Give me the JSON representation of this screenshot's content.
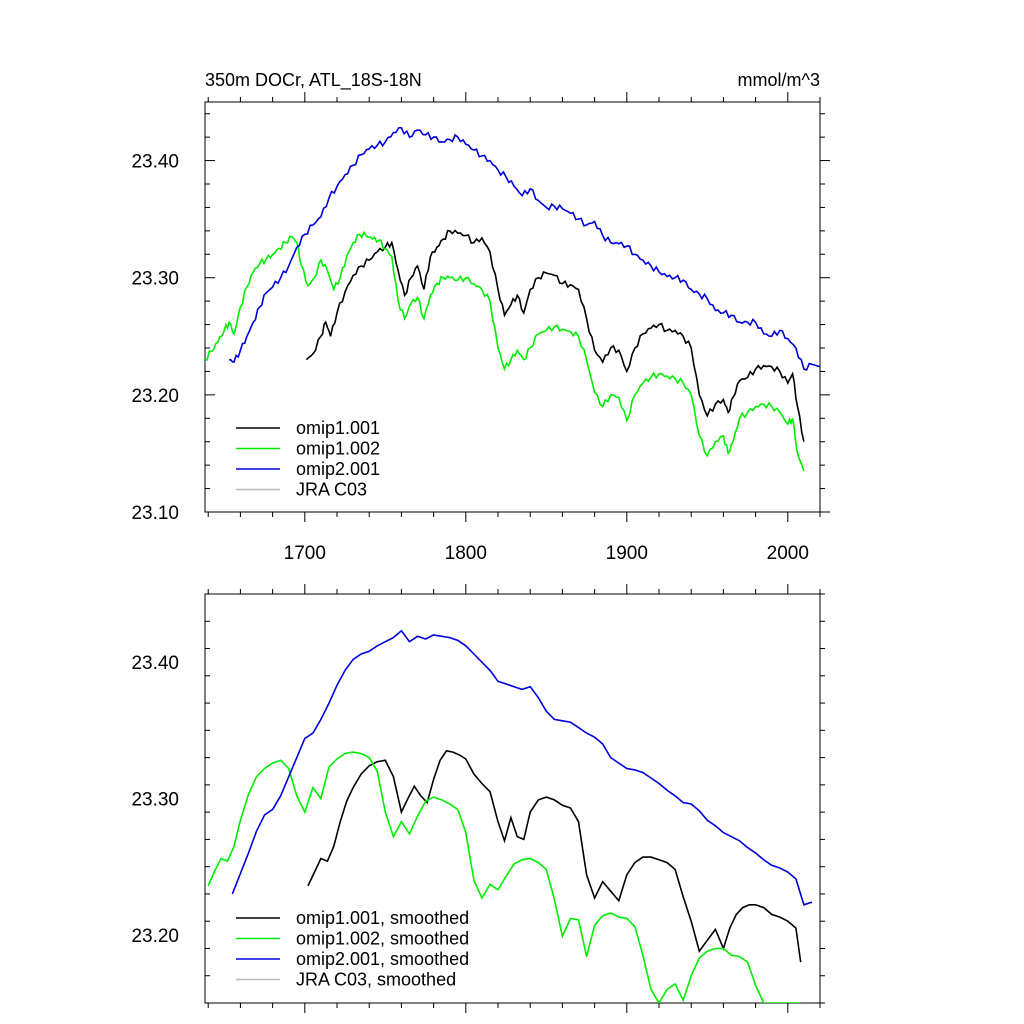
{
  "title_left": "350m DOCr, ATL_18S-18N",
  "title_right": "mmol/m^3",
  "colors": {
    "omip1_001": "#000000",
    "omip1_002": "#00ee00",
    "omip2_001": "#0000dd",
    "jra_c03": "#bbbbbb"
  },
  "chart_data": [
    {
      "type": "line",
      "panel": "top",
      "xlim": [
        1638,
        2020
      ],
      "ylim": [
        23.1,
        23.45
      ],
      "x_ticks": [
        1700,
        1800,
        1900,
        2000
      ],
      "x_tick_labels": [
        "1700",
        "1800",
        "1900",
        "2000"
      ],
      "y_ticks": [
        23.1,
        23.2,
        23.3,
        23.4
      ],
      "y_tick_labels": [
        "23.10",
        "23.20",
        "23.30",
        "23.40"
      ],
      "grid": false,
      "legend_position": "bottom-left",
      "series": [
        {
          "name": "omip1.001",
          "key": "omip1_001",
          "x": [
            1701,
            1705,
            1710,
            1713,
            1716,
            1720,
            1725,
            1730,
            1735,
            1740,
            1745,
            1750,
            1754,
            1758,
            1762,
            1766,
            1770,
            1774,
            1778,
            1782,
            1786,
            1790,
            1795,
            1800,
            1805,
            1810,
            1815,
            1820,
            1824,
            1828,
            1832,
            1836,
            1840,
            1845,
            1850,
            1855,
            1860,
            1865,
            1870,
            1875,
            1880,
            1885,
            1890,
            1895,
            1900,
            1905,
            1910,
            1915,
            1920,
            1925,
            1930,
            1935,
            1940,
            1945,
            1950,
            1955,
            1960,
            1963,
            1966,
            1970,
            1975,
            1980,
            1985,
            1990,
            1995,
            2000,
            2003,
            2006,
            2010
          ],
          "y": [
            23.23,
            23.235,
            23.25,
            23.262,
            23.25,
            23.27,
            23.288,
            23.302,
            23.31,
            23.315,
            23.322,
            23.326,
            23.33,
            23.306,
            23.285,
            23.3,
            23.31,
            23.29,
            23.318,
            23.326,
            23.333,
            23.34,
            23.338,
            23.336,
            23.33,
            23.334,
            23.322,
            23.29,
            23.268,
            23.277,
            23.285,
            23.27,
            23.29,
            23.3,
            23.304,
            23.302,
            23.295,
            23.294,
            23.29,
            23.265,
            23.238,
            23.228,
            23.24,
            23.238,
            23.22,
            23.24,
            23.252,
            23.257,
            23.26,
            23.255,
            23.255,
            23.25,
            23.24,
            23.2,
            23.182,
            23.192,
            23.196,
            23.185,
            23.198,
            23.212,
            23.215,
            23.222,
            23.225,
            23.224,
            23.22,
            23.21,
            23.218,
            23.19,
            23.16
          ]
        },
        {
          "name": "omip1.002",
          "key": "omip1_002",
          "x": [
            1638,
            1642,
            1646,
            1650,
            1653,
            1656,
            1660,
            1664,
            1668,
            1672,
            1676,
            1680,
            1684,
            1688,
            1692,
            1695,
            1698,
            1702,
            1706,
            1710,
            1714,
            1718,
            1722,
            1726,
            1730,
            1734,
            1738,
            1742,
            1746,
            1750,
            1754,
            1758,
            1762,
            1766,
            1770,
            1774,
            1778,
            1782,
            1786,
            1790,
            1795,
            1800,
            1805,
            1810,
            1815,
            1820,
            1824,
            1828,
            1832,
            1836,
            1840,
            1845,
            1850,
            1855,
            1860,
            1865,
            1870,
            1875,
            1880,
            1885,
            1890,
            1895,
            1900,
            1905,
            1910,
            1915,
            1920,
            1925,
            1930,
            1935,
            1940,
            1945,
            1950,
            1955,
            1960,
            1963,
            1966,
            1970,
            1975,
            1980,
            1985,
            1990,
            1995,
            2000,
            2003,
            2006,
            2010
          ],
          "y": [
            23.23,
            23.237,
            23.245,
            23.255,
            23.262,
            23.252,
            23.275,
            23.292,
            23.305,
            23.312,
            23.316,
            23.32,
            23.325,
            23.33,
            23.335,
            23.33,
            23.31,
            23.293,
            23.3,
            23.315,
            23.306,
            23.29,
            23.3,
            23.318,
            23.33,
            23.337,
            23.336,
            23.333,
            23.332,
            23.325,
            23.318,
            23.28,
            23.265,
            23.278,
            23.283,
            23.265,
            23.285,
            23.295,
            23.3,
            23.3,
            23.298,
            23.3,
            23.295,
            23.29,
            23.28,
            23.24,
            23.222,
            23.23,
            23.238,
            23.23,
            23.24,
            23.252,
            23.255,
            23.258,
            23.256,
            23.254,
            23.25,
            23.23,
            23.202,
            23.19,
            23.2,
            23.198,
            23.178,
            23.2,
            23.21,
            23.215,
            23.218,
            23.216,
            23.214,
            23.21,
            23.2,
            23.165,
            23.148,
            23.16,
            23.165,
            23.15,
            23.16,
            23.18,
            23.185,
            23.19,
            23.192,
            23.19,
            23.185,
            23.175,
            23.18,
            23.15,
            23.135
          ]
        },
        {
          "name": "omip2.001",
          "key": "omip2_001",
          "x": [
            1653,
            1656,
            1660,
            1664,
            1668,
            1672,
            1676,
            1680,
            1685,
            1690,
            1695,
            1700,
            1705,
            1710,
            1715,
            1720,
            1725,
            1730,
            1735,
            1740,
            1745,
            1750,
            1755,
            1760,
            1765,
            1770,
            1775,
            1780,
            1785,
            1790,
            1795,
            1800,
            1805,
            1810,
            1815,
            1820,
            1825,
            1830,
            1835,
            1840,
            1845,
            1850,
            1855,
            1860,
            1865,
            1870,
            1875,
            1880,
            1885,
            1890,
            1895,
            1900,
            1905,
            1910,
            1915,
            1920,
            1925,
            1930,
            1935,
            1940,
            1945,
            1950,
            1955,
            1960,
            1965,
            1970,
            1975,
            1980,
            1985,
            1990,
            1995,
            2000,
            2005,
            2010,
            2015,
            2020
          ],
          "y": [
            23.23,
            23.228,
            23.238,
            23.25,
            23.262,
            23.275,
            23.287,
            23.292,
            23.3,
            23.31,
            23.326,
            23.337,
            23.345,
            23.352,
            23.368,
            23.378,
            23.388,
            23.396,
            23.405,
            23.41,
            23.413,
            23.416,
            23.424,
            23.428,
            23.42,
            23.426,
            23.422,
            23.42,
            23.416,
            23.418,
            23.42,
            23.414,
            23.409,
            23.404,
            23.4,
            23.392,
            23.386,
            23.378,
            23.37,
            23.376,
            23.366,
            23.36,
            23.361,
            23.359,
            23.355,
            23.35,
            23.345,
            23.348,
            23.336,
            23.33,
            23.329,
            23.327,
            23.32,
            23.315,
            23.31,
            23.305,
            23.301,
            23.3,
            23.298,
            23.29,
            23.286,
            23.282,
            23.272,
            23.27,
            23.268,
            23.262,
            23.262,
            23.262,
            23.252,
            23.25,
            23.255,
            23.248,
            23.24,
            23.222,
            23.226,
            23.224
          ]
        },
        {
          "name": "JRA C03",
          "key": "jra_c03",
          "x": [],
          "y": []
        }
      ]
    },
    {
      "type": "line",
      "panel": "bottom",
      "xlim": [
        1638,
        2020
      ],
      "ylim": [
        23.15,
        23.45
      ],
      "x_ticks": [
        1700,
        1800,
        1900,
        2000
      ],
      "y_ticks": [
        23.2,
        23.3,
        23.4
      ],
      "y_tick_labels": [
        "23.20",
        "23.30",
        "23.40"
      ],
      "grid": false,
      "legend_position": "bottom-left",
      "series": [
        {
          "name": "omip1.001, smoothed",
          "key": "omip1_001",
          "x": [
            1702,
            1706,
            1710,
            1714,
            1718,
            1722,
            1726,
            1730,
            1735,
            1740,
            1745,
            1750,
            1755,
            1760,
            1764,
            1768,
            1772,
            1776,
            1780,
            1784,
            1788,
            1792,
            1796,
            1800,
            1805,
            1810,
            1815,
            1820,
            1824,
            1828,
            1832,
            1836,
            1840,
            1845,
            1850,
            1855,
            1860,
            1865,
            1870,
            1875,
            1880,
            1885,
            1890,
            1895,
            1900,
            1905,
            1910,
            1915,
            1920,
            1925,
            1930,
            1935,
            1940,
            1945,
            1950,
            1955,
            1960,
            1964,
            1968,
            1972,
            1976,
            1980,
            1985,
            1990,
            1995,
            2000,
            2005,
            2008
          ],
          "y": [
            23.236,
            23.246,
            23.256,
            23.254,
            23.265,
            23.283,
            23.298,
            23.308,
            23.318,
            23.324,
            23.327,
            23.328,
            23.316,
            23.29,
            23.3,
            23.309,
            23.302,
            23.297,
            23.314,
            23.328,
            23.335,
            23.334,
            23.332,
            23.329,
            23.318,
            23.311,
            23.305,
            23.283,
            23.269,
            23.286,
            23.272,
            23.27,
            23.29,
            23.299,
            23.301,
            23.299,
            23.295,
            23.293,
            23.283,
            23.244,
            23.227,
            23.239,
            23.232,
            23.225,
            23.244,
            23.253,
            23.257,
            23.257,
            23.255,
            23.253,
            23.248,
            23.228,
            23.21,
            23.188,
            23.196,
            23.204,
            23.19,
            23.205,
            23.215,
            23.22,
            23.222,
            23.222,
            23.22,
            23.215,
            23.213,
            23.21,
            23.205,
            23.18
          ]
        },
        {
          "name": "omip1.002, smoothed",
          "key": "omip1_002",
          "x": [
            1640,
            1644,
            1648,
            1652,
            1656,
            1660,
            1665,
            1670,
            1675,
            1680,
            1685,
            1690,
            1695,
            1700,
            1705,
            1710,
            1715,
            1720,
            1725,
            1730,
            1735,
            1740,
            1745,
            1750,
            1755,
            1760,
            1765,
            1770,
            1775,
            1780,
            1785,
            1790,
            1795,
            1800,
            1805,
            1810,
            1815,
            1820,
            1825,
            1830,
            1835,
            1840,
            1845,
            1850,
            1855,
            1860,
            1865,
            1870,
            1875,
            1880,
            1885,
            1890,
            1895,
            1900,
            1905,
            1910,
            1915,
            1920,
            1925,
            1930,
            1935,
            1940,
            1945,
            1950,
            1955,
            1960,
            1965,
            1970,
            1975,
            1980,
            1985,
            1990,
            1995,
            2000,
            2005,
            2008
          ],
          "y": [
            23.236,
            23.247,
            23.256,
            23.254,
            23.265,
            23.284,
            23.303,
            23.316,
            23.322,
            23.326,
            23.328,
            23.322,
            23.302,
            23.29,
            23.308,
            23.3,
            23.323,
            23.329,
            23.333,
            23.334,
            23.333,
            23.33,
            23.32,
            23.29,
            23.272,
            23.283,
            23.274,
            23.287,
            23.298,
            23.301,
            23.299,
            23.296,
            23.292,
            23.275,
            23.24,
            23.227,
            23.237,
            23.233,
            23.243,
            23.252,
            23.255,
            23.256,
            23.253,
            23.248,
            23.226,
            23.199,
            23.212,
            23.211,
            23.184,
            23.207,
            23.214,
            23.216,
            23.213,
            23.212,
            23.206,
            23.185,
            23.16,
            23.15,
            23.16,
            23.164,
            23.152,
            23.17,
            23.183,
            23.188,
            23.19,
            23.19,
            23.185,
            23.184,
            23.18,
            23.163,
            23.15,
            23.15,
            23.15,
            23.15,
            23.15,
            23.15
          ]
        },
        {
          "name": "omip2.001, smoothed",
          "key": "omip2_001",
          "x": [
            1655,
            1660,
            1665,
            1670,
            1675,
            1680,
            1685,
            1690,
            1695,
            1700,
            1705,
            1710,
            1715,
            1720,
            1725,
            1730,
            1735,
            1740,
            1745,
            1750,
            1755,
            1760,
            1765,
            1770,
            1775,
            1780,
            1785,
            1790,
            1795,
            1800,
            1805,
            1810,
            1815,
            1820,
            1825,
            1830,
            1835,
            1840,
            1845,
            1850,
            1855,
            1860,
            1865,
            1870,
            1875,
            1880,
            1885,
            1890,
            1895,
            1900,
            1905,
            1910,
            1915,
            1920,
            1925,
            1930,
            1935,
            1940,
            1945,
            1950,
            1955,
            1960,
            1965,
            1970,
            1975,
            1980,
            1985,
            1990,
            1995,
            2000,
            2005,
            2010,
            2015
          ],
          "y": [
            23.23,
            23.245,
            23.26,
            23.276,
            23.288,
            23.292,
            23.302,
            23.316,
            23.33,
            23.344,
            23.348,
            23.358,
            23.37,
            23.383,
            23.394,
            23.402,
            23.406,
            23.408,
            23.412,
            23.415,
            23.418,
            23.423,
            23.415,
            23.419,
            23.417,
            23.42,
            23.419,
            23.418,
            23.416,
            23.412,
            23.406,
            23.4,
            23.394,
            23.386,
            23.384,
            23.382,
            23.38,
            23.382,
            23.374,
            23.364,
            23.358,
            23.357,
            23.356,
            23.352,
            23.348,
            23.345,
            23.34,
            23.33,
            23.326,
            23.322,
            23.321,
            23.319,
            23.315,
            23.311,
            23.306,
            23.302,
            23.297,
            23.296,
            23.291,
            23.284,
            23.28,
            23.275,
            23.272,
            23.269,
            23.264,
            23.26,
            23.255,
            23.251,
            23.249,
            23.246,
            23.241,
            23.222,
            23.224
          ]
        },
        {
          "name": "JRA C03, smoothed",
          "key": "jra_c03",
          "x": [],
          "y": []
        }
      ]
    }
  ]
}
